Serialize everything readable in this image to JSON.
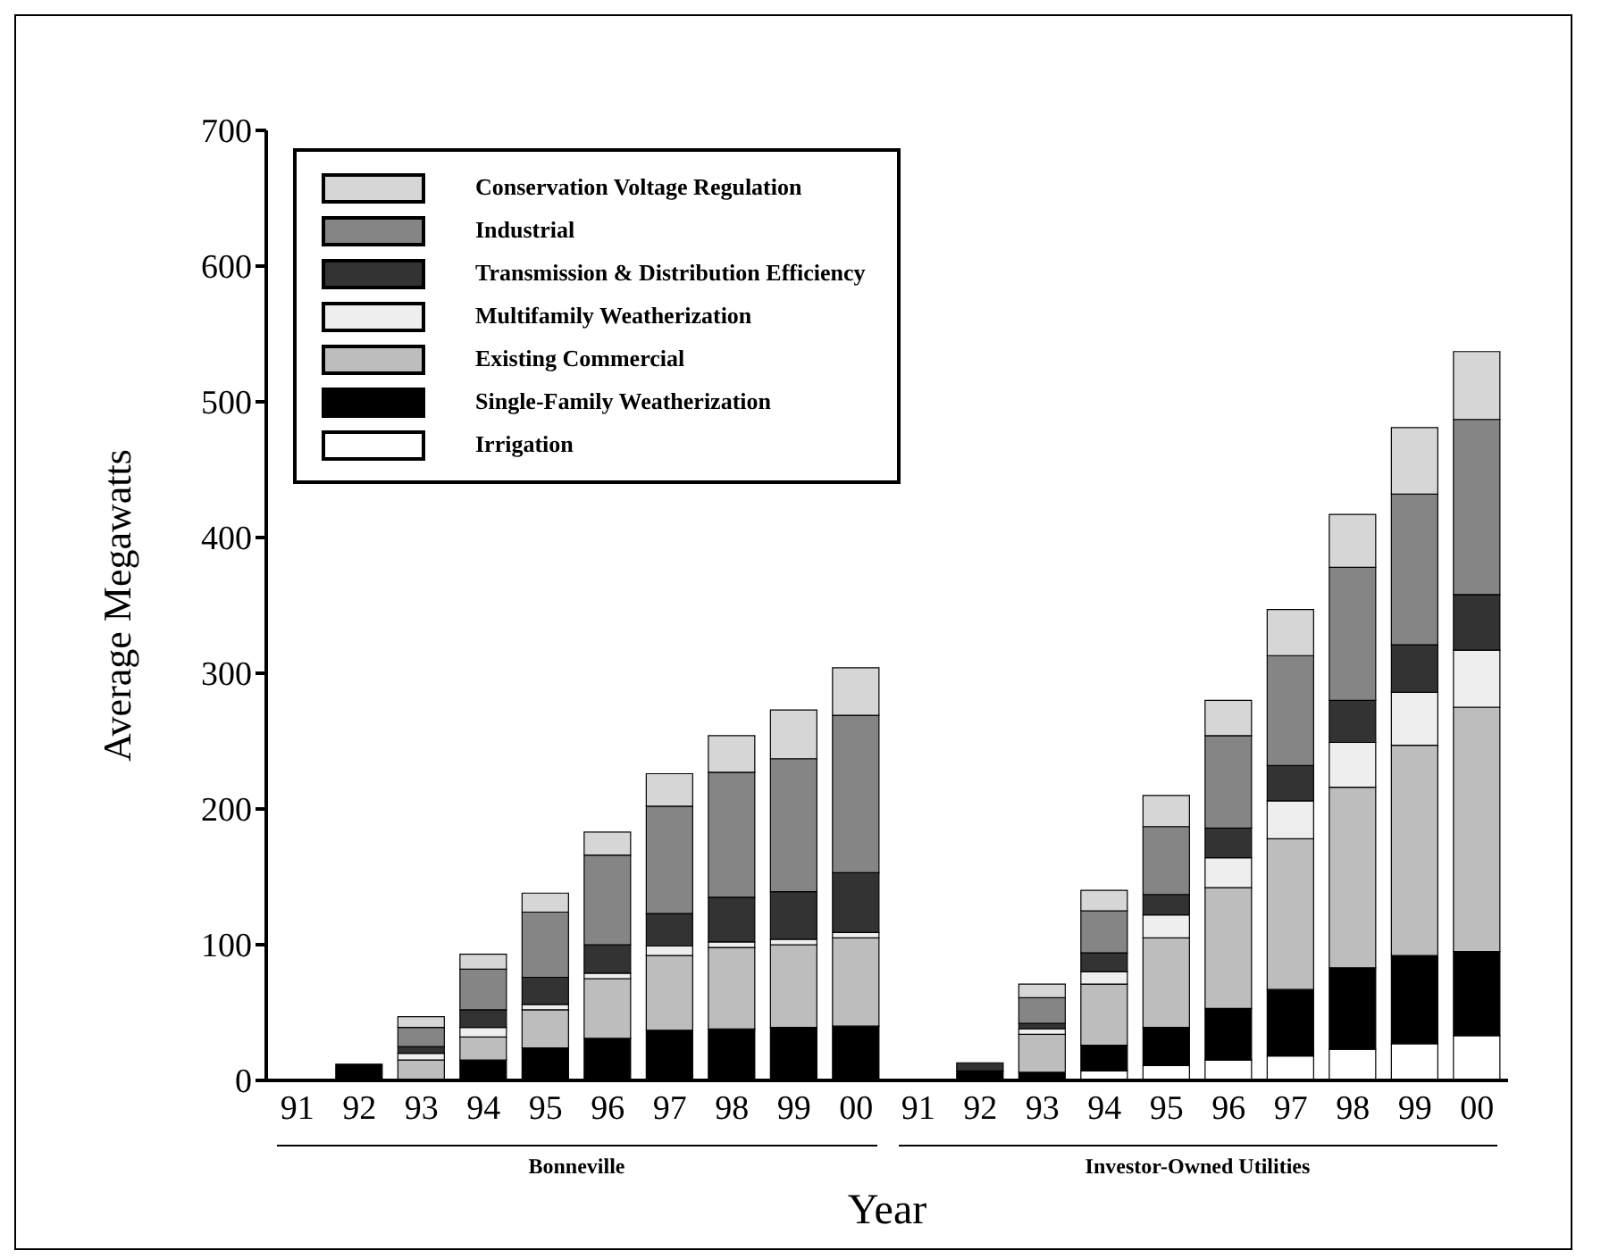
{
  "chart_data": {
    "type": "bar",
    "stacked": true,
    "xlabel": "Year",
    "ylabel": "Average Megawatts",
    "categories": [
      "91",
      "92",
      "93",
      "94",
      "95",
      "96",
      "97",
      "98",
      "99",
      "00",
      "91",
      "92",
      "93",
      "94",
      "95",
      "96",
      "97",
      "98",
      "99",
      "00"
    ],
    "ylim": [
      0,
      700
    ],
    "yticks": [
      0,
      100,
      200,
      300,
      400,
      500,
      600,
      700
    ],
    "grid": false,
    "legend": "top left",
    "annotations": [
      "Bonneville",
      "Investor-Owned Utilities"
    ],
    "series": [
      {
        "name": "Irrigation",
        "color": "#ffffff",
        "values": [
          0,
          0,
          0,
          0,
          0,
          0,
          0,
          0,
          0,
          0,
          0,
          0,
          0,
          7,
          11,
          15,
          18,
          23,
          27,
          33
        ]
      },
      {
        "name": "Single-Family Weatherization",
        "color": "#000000",
        "values": [
          0,
          12,
          0,
          15,
          24,
          31,
          37,
          38,
          39,
          40,
          0,
          7,
          6,
          19,
          28,
          38,
          49,
          60,
          65,
          62
        ]
      },
      {
        "name": "Existing Commercial",
        "color": "#bdbdbd",
        "values": [
          0,
          0,
          15,
          17,
          28,
          44,
          55,
          60,
          61,
          65,
          0,
          0,
          28,
          45,
          66,
          89,
          111,
          133,
          155,
          180
        ]
      },
      {
        "name": "Multifamily Weatherization",
        "color": "#eeeeee",
        "values": [
          0,
          0,
          5,
          7,
          4,
          4,
          7,
          4,
          4,
          4,
          0,
          0,
          4,
          9,
          17,
          22,
          28,
          33,
          39,
          42
        ]
      },
      {
        "name": "Transmission & Distribution Efficiency",
        "color": "#333333",
        "values": [
          0,
          0,
          5,
          13,
          20,
          21,
          24,
          33,
          35,
          44,
          0,
          6,
          4,
          14,
          15,
          22,
          26,
          31,
          35,
          41
        ]
      },
      {
        "name": "Industrial",
        "color": "#858585",
        "values": [
          0,
          0,
          14,
          30,
          48,
          66,
          79,
          92,
          98,
          116,
          0,
          0,
          19,
          31,
          50,
          68,
          81,
          98,
          111,
          129
        ]
      },
      {
        "name": "Conservation Voltage Regulation",
        "color": "#d6d6d6",
        "values": [
          0,
          0,
          8,
          11,
          14,
          17,
          24,
          27,
          36,
          35,
          0,
          0,
          10,
          15,
          23,
          26,
          34,
          39,
          49,
          50
        ]
      }
    ]
  }
}
